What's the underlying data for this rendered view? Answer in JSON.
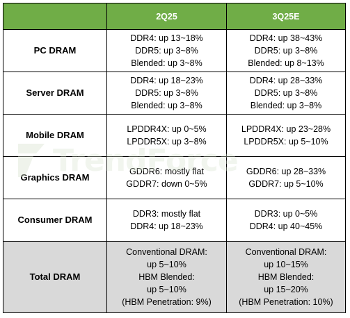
{
  "watermark": {
    "text": "TrendForce"
  },
  "table": {
    "columns": [
      "",
      "2Q25",
      "3Q25E"
    ],
    "rows": [
      {
        "label": "PC DRAM",
        "q2": [
          "DDR4: up 13~18%",
          "DDR5: up 3~8%",
          "Blended: up 3~8%"
        ],
        "q3": [
          "DDR4: up 38~43%",
          "DDR5: up 3~8%",
          "Blended: up 8~13%"
        ]
      },
      {
        "label": "Server DRAM",
        "q2": [
          "DDR4: up 18~23%",
          "DDR5: up 3~8%",
          "Blended: up 3~8%"
        ],
        "q3": [
          "DDR4: up 28~33%",
          "DDR5: up 3~8%",
          "Blended: up 3~8%"
        ]
      },
      {
        "label": "Mobile DRAM",
        "q2": [
          "LPDDR4X: up 0~5%",
          "LPDDR5X: up 3~8%"
        ],
        "q3": [
          "LPDDR4X: up 23~28%",
          "LPDDR5X: up 5~10%"
        ]
      },
      {
        "label": "Graphics DRAM",
        "q2": [
          "GDDR6: mostly flat",
          "GDDR7: down 0~5%"
        ],
        "q3": [
          "GDDR6: up 28~33%",
          "GDDR7: up 5~10%"
        ]
      },
      {
        "label": "Consumer DRAM",
        "q2": [
          "DDR3: mostly flat",
          "DDR4: up 18~23%"
        ],
        "q3": [
          "DDR3: up 0~5%",
          "DDR4: up 40~45%"
        ]
      },
      {
        "label": "Total DRAM",
        "q2": [
          "Conventional DRAM:",
          "up 5~10%",
          "HBM Blended:",
          "up 5~10%",
          "(HBM Penetration: 9%)"
        ],
        "q3": [
          "Conventional DRAM:",
          "up 10~15%",
          "HBM Blended:",
          "up 15~20%",
          "(HBM Penetration: 10%)"
        ]
      }
    ]
  },
  "colors": {
    "header_bg": "#70ad47",
    "header_text": "#ffffff",
    "total_bg": "#d9d9d9",
    "border": "#000000"
  }
}
